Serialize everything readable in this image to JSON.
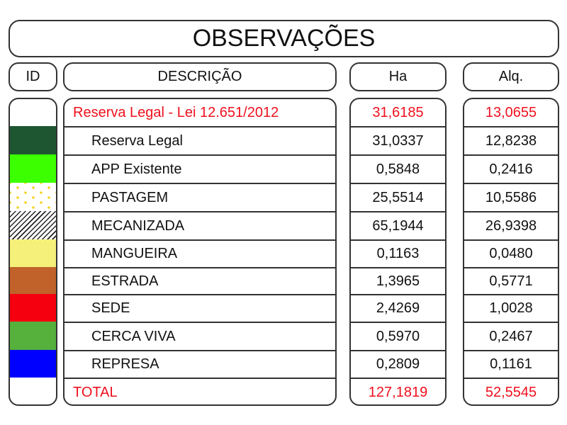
{
  "title": "OBSERVAÇÕES",
  "headers": {
    "id": "ID",
    "description": "DESCRIÇÃO",
    "ha": "Ha",
    "alq": "Alq."
  },
  "rows": [
    {
      "description": "Reserva Legal - Lei 12.651/2012",
      "ha": "31,6185",
      "alq": "13,0655",
      "highlight": true,
      "swatch": null
    },
    {
      "description": "Reserva Legal",
      "ha": "31,0337",
      "alq": "12,8238",
      "swatch": {
        "color": "#1e5631",
        "pattern": "solid"
      }
    },
    {
      "description": "APP Existente",
      "ha": "0,5848",
      "alq": "0,2416",
      "swatch": {
        "color": "#3cff00",
        "pattern": "solid"
      }
    },
    {
      "description": "PASTAGEM",
      "ha": "25,5514",
      "alq": "10,5586",
      "swatch": {
        "color": "#f2d31b",
        "pattern": "dots"
      }
    },
    {
      "description": "MECANIZADA",
      "ha": "65,1944",
      "alq": "26,9398",
      "swatch": {
        "color": "#222222",
        "pattern": "hatch"
      }
    },
    {
      "description": "MANGUEIRA",
      "ha": "0,1163",
      "alq": "0,0480",
      "swatch": {
        "color": "#f5f07a",
        "pattern": "solid"
      }
    },
    {
      "description": "ESTRADA",
      "ha": "1,3965",
      "alq": "0,5771",
      "swatch": {
        "color": "#c0622a",
        "pattern": "solid"
      }
    },
    {
      "description": "SEDE",
      "ha": "2,4269",
      "alq": "1,0028",
      "swatch": {
        "color": "#f5000f",
        "pattern": "solid"
      }
    },
    {
      "description": "CERCA VIVA",
      "ha": "0,5970",
      "alq": "0,2467",
      "swatch": {
        "color": "#55b03c",
        "pattern": "solid"
      }
    },
    {
      "description": "REPRESA",
      "ha": "0,2809",
      "alq": "0,1161",
      "swatch": {
        "color": "#0000ff",
        "pattern": "solid"
      }
    },
    {
      "description": "TOTAL",
      "ha": "127,1819",
      "alq": "52,5545",
      "highlight": true,
      "swatch": null
    }
  ],
  "colors": {
    "highlight_text": "#f0101e",
    "border": "#333333"
  }
}
